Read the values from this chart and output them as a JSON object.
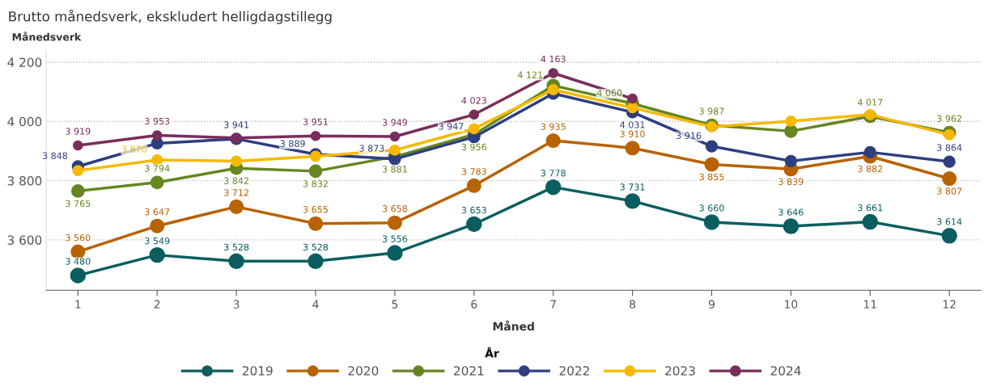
{
  "chart_data": {
    "type": "line",
    "subtitle": "Brutto månedsverk, ekskludert helligdagstillegg",
    "ylabel": "Månedsverk",
    "xlabel": "Måned",
    "legend_title": "År",
    "legend": "bottom",
    "grid": "y",
    "marker": "circle",
    "line_style": "solid",
    "categories": [
      "1",
      "2",
      "3",
      "4",
      "5",
      "6",
      "7",
      "8",
      "9",
      "10",
      "11",
      "12"
    ],
    "ylim": [
      3430,
      4240
    ],
    "yticks": [
      {
        "value": 3600,
        "label": "3 600"
      },
      {
        "value": 3800,
        "label": "3 800"
      },
      {
        "value": 4000,
        "label": "4 000"
      },
      {
        "value": 4200,
        "label": "4 200"
      }
    ],
    "series": [
      {
        "name": "2019",
        "color": "#0b5e5f",
        "values": [
          3480,
          3549,
          3528,
          3528,
          3556,
          3653,
          3778,
          3731,
          3660,
          3646,
          3661,
          3614
        ],
        "value_labels": [
          "3 480",
          "3 549",
          "3 528",
          "3 528",
          "3 556",
          "3 653",
          "3 778",
          "3 731",
          "3 660",
          "3 646",
          "3 661",
          "3 614"
        ]
      },
      {
        "name": "2020",
        "color": "#b86200",
        "values": [
          3560,
          3647,
          3712,
          3655,
          3658,
          3783,
          3935,
          3910,
          3855,
          3839,
          3882,
          3807
        ],
        "value_labels": [
          "3 560",
          "3 647",
          "3 712",
          "3 655",
          "3 658",
          "3 783",
          "3 935",
          "3 910",
          "3 855",
          "3 839",
          "3 882",
          "3 807"
        ]
      },
      {
        "name": "2021",
        "color": "#66861f",
        "values": [
          3765,
          3794,
          3842,
          3832,
          3881,
          3956,
          4121,
          4060,
          3987,
          3967,
          4017,
          3962
        ],
        "value_labels": [
          "3 765",
          "3 794",
          "3 842",
          "3 832",
          "3 881",
          "3 956",
          "4 121",
          "4 060",
          "3 987",
          null,
          "4 017",
          "3 962"
        ]
      },
      {
        "name": "2022",
        "color": "#2e3e80",
        "values": [
          3848,
          3926,
          3941,
          3889,
          3873,
          3947,
          4094,
          4031,
          3916,
          3866,
          3896,
          3864
        ],
        "value_labels": [
          "3 848",
          null,
          "3 941",
          "3 889",
          "3 873",
          "3 947",
          null,
          "4 031",
          "3 916",
          null,
          null,
          "3 864"
        ]
      },
      {
        "name": "2023",
        "color": "#f6b900",
        "values": [
          3834,
          3870,
          3866,
          3882,
          3903,
          3975,
          4107,
          4046,
          3982,
          4001,
          4023,
          3955
        ],
        "value_labels": [
          null,
          "3 870",
          null,
          null,
          null,
          null,
          null,
          null,
          null,
          null,
          null,
          null
        ]
      },
      {
        "name": "2024",
        "color": "#7a2d5a",
        "values": [
          3919,
          3953,
          3944,
          3951,
          3949,
          4023,
          4163,
          4077,
          null,
          null,
          null,
          null
        ],
        "value_labels": [
          "3 919",
          "3 953",
          null,
          "3 951",
          "3 949",
          "4 023",
          "4 163",
          null,
          null,
          null,
          null,
          null
        ]
      }
    ]
  }
}
